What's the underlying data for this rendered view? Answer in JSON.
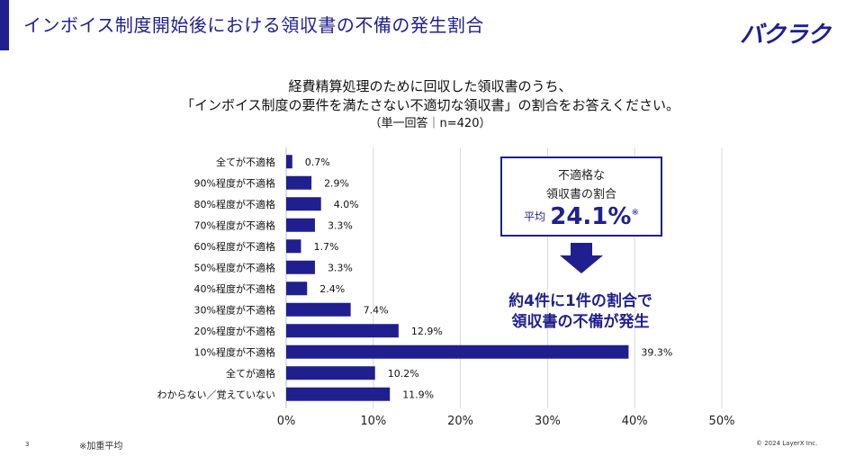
{
  "slide": {
    "title": "インボイス制度開始後における領収書の不備の発生割合",
    "logo": "バクラク",
    "page_number": "3",
    "footnote": "※加重平均",
    "copyright": "© 2024 LayerX Inc."
  },
  "question": {
    "line1": "経費精算処理のために回収した領収書のうち、",
    "line2": "「インボイス制度の要件を満たさない不適切な領収書」の割合をお答えください。",
    "line3": "（単一回答｜n=420）"
  },
  "callout": {
    "line1": "不適格な",
    "line2": "領収書の割合",
    "avg_prefix": "平均",
    "avg_value": "24.1%",
    "avg_mark": "※"
  },
  "result": {
    "line1": "約4件に1件の割合で",
    "line2": "領収書の不備が発生"
  },
  "colors": {
    "accent": "#1f1f8f",
    "bar": "#1f1f8f",
    "grid": "#d9d9d9"
  },
  "chart_data": {
    "type": "bar",
    "orientation": "horizontal",
    "categories": [
      "全てが不適格",
      "90%程度が不適格",
      "80%程度が不適格",
      "70%程度が不適格",
      "60%程度が不適格",
      "50%程度が不適格",
      "40%程度が不適格",
      "30%程度が不適格",
      "20%程度が不適格",
      "10%程度が不適格",
      "全てが適格",
      "わからない／覚えていない"
    ],
    "values": [
      0.7,
      2.9,
      4.0,
      3.3,
      1.7,
      3.3,
      2.4,
      7.4,
      12.9,
      39.3,
      10.2,
      11.9
    ],
    "value_labels": [
      "0.7%",
      "2.9%",
      "4.0%",
      "3.3%",
      "1.7%",
      "3.3%",
      "2.4%",
      "7.4%",
      "12.9%",
      "39.3%",
      "10.2%",
      "11.9%"
    ],
    "xlim": [
      0,
      50
    ],
    "xticks": [
      0,
      10,
      20,
      30,
      40,
      50
    ],
    "xtick_labels": [
      "0%",
      "10%",
      "20%",
      "30%",
      "40%",
      "50%"
    ],
    "grid": true
  }
}
